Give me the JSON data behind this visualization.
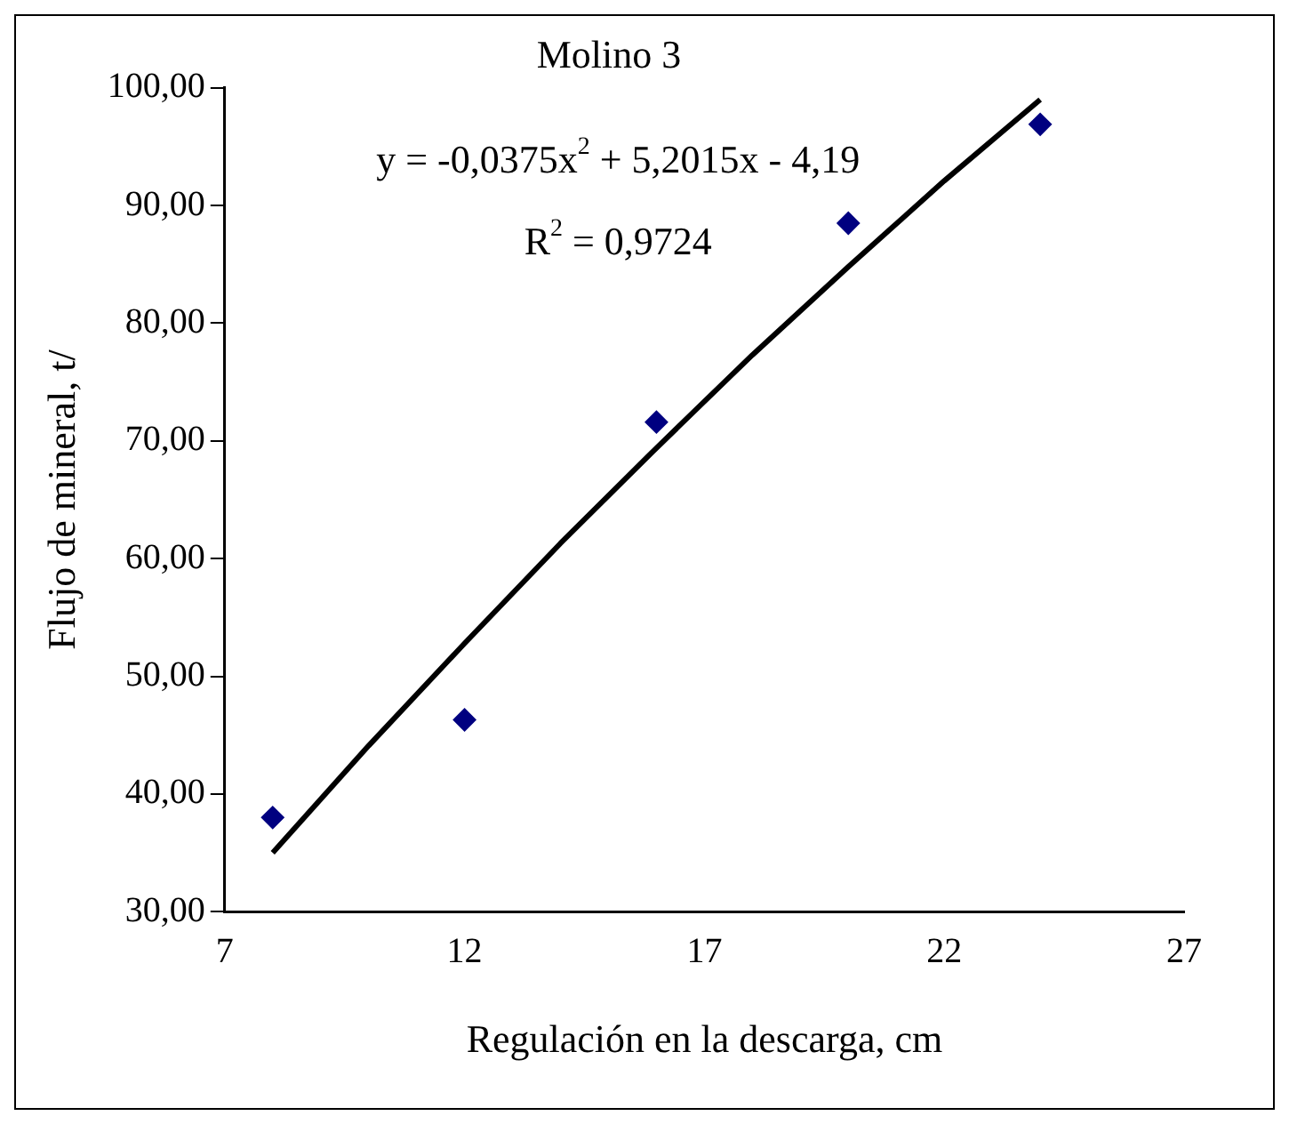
{
  "chart_data": {
    "type": "scatter",
    "title": "Molino 3",
    "xlabel": "Regulación en la descarga, cm",
    "ylabel": "Flujo de mineral, t/",
    "x": [
      8,
      12,
      16,
      20,
      24
    ],
    "series": [
      {
        "type": "scatter",
        "color": "#000080",
        "marker": "diamond",
        "values": [
          38.0,
          46.3,
          71.6,
          88.5,
          96.9
        ]
      },
      {
        "type": "line",
        "color": "#000000",
        "marker": "none",
        "line_style": "solid",
        "x": [
          8,
          10,
          12,
          14,
          16,
          18,
          20,
          22,
          24
        ],
        "values": [
          35.0,
          44.1,
          52.8,
          61.3,
          69.4,
          77.3,
          84.8,
          92.1,
          99.0
        ]
      }
    ],
    "xlim": [
      7,
      27
    ],
    "xticks": [
      7,
      12,
      17,
      22,
      27
    ],
    "ylim": [
      30,
      100
    ],
    "yticks": [
      {
        "value": 30,
        "label": "30,00"
      },
      {
        "value": 40,
        "label": "40,00"
      },
      {
        "value": 50,
        "label": "50,00"
      },
      {
        "value": 60,
        "label": "60,00"
      },
      {
        "value": 70,
        "label": "70,00"
      },
      {
        "value": 80,
        "label": "80,00"
      },
      {
        "value": 90,
        "label": "90,00"
      },
      {
        "value": 100,
        "label": "100,00"
      }
    ],
    "grid": false,
    "legend": false,
    "annotations": [
      "y = -0,0375x$^{2}$ + 5,2015x - 4,19",
      "R$^{2}$ = 0,9724"
    ]
  }
}
